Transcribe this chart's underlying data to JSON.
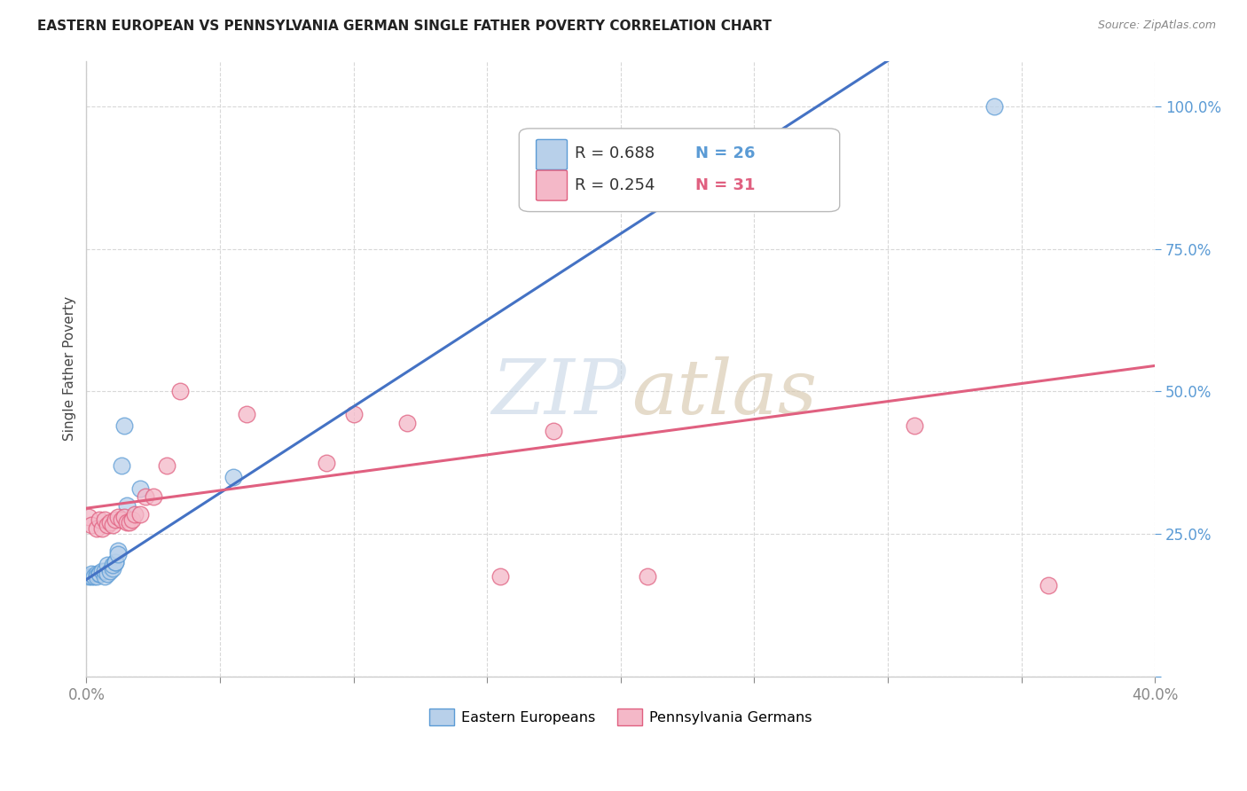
{
  "title": "EASTERN EUROPEAN VS PENNSYLVANIA GERMAN SINGLE FATHER POVERTY CORRELATION CHART",
  "source": "Source: ZipAtlas.com",
  "ylabel": "Single Father Poverty",
  "legend_blue": {
    "R": "0.688",
    "N": "26",
    "label": "Eastern Europeans"
  },
  "legend_pink": {
    "R": "0.254",
    "N": "31",
    "label": "Pennsylvania Germans"
  },
  "blue_color": "#b8d0ea",
  "blue_edge_color": "#5b9bd5",
  "blue_line_color": "#4472c4",
  "pink_color": "#f4b8c8",
  "pink_edge_color": "#e06080",
  "pink_line_color": "#e06080",
  "blue_scatter_x": [
    0.001,
    0.002,
    0.002,
    0.003,
    0.004,
    0.004,
    0.005,
    0.005,
    0.006,
    0.007,
    0.007,
    0.008,
    0.008,
    0.009,
    0.01,
    0.01,
    0.011,
    0.011,
    0.012,
    0.012,
    0.013,
    0.014,
    0.015,
    0.02,
    0.055,
    0.34
  ],
  "blue_scatter_y": [
    0.175,
    0.175,
    0.18,
    0.175,
    0.18,
    0.175,
    0.18,
    0.18,
    0.185,
    0.175,
    0.185,
    0.18,
    0.195,
    0.185,
    0.19,
    0.195,
    0.2,
    0.2,
    0.22,
    0.215,
    0.37,
    0.44,
    0.3,
    0.33,
    0.35,
    1.0
  ],
  "pink_scatter_x": [
    0.001,
    0.002,
    0.004,
    0.005,
    0.006,
    0.007,
    0.008,
    0.009,
    0.01,
    0.011,
    0.012,
    0.013,
    0.014,
    0.015,
    0.016,
    0.017,
    0.018,
    0.02,
    0.022,
    0.025,
    0.03,
    0.035,
    0.06,
    0.09,
    0.1,
    0.12,
    0.155,
    0.175,
    0.21,
    0.31,
    0.36
  ],
  "pink_scatter_y": [
    0.28,
    0.265,
    0.26,
    0.275,
    0.26,
    0.275,
    0.265,
    0.27,
    0.265,
    0.275,
    0.28,
    0.275,
    0.28,
    0.27,
    0.27,
    0.275,
    0.285,
    0.285,
    0.315,
    0.315,
    0.37,
    0.5,
    0.46,
    0.375,
    0.46,
    0.445,
    0.175,
    0.43,
    0.175,
    0.44,
    0.16
  ],
  "blue_line_x": [
    0.0,
    0.3
  ],
  "blue_line_y": [
    0.17,
    1.08
  ],
  "pink_line_x": [
    0.0,
    0.4
  ],
  "pink_line_y": [
    0.295,
    0.545
  ],
  "xlim": [
    0.0,
    0.4
  ],
  "ylim": [
    0.0,
    1.08
  ],
  "ytick_vals": [
    0.0,
    0.25,
    0.5,
    0.75,
    1.0
  ],
  "ytick_labels": [
    "",
    "25.0%",
    "50.0%",
    "75.0%",
    "100.0%"
  ],
  "xtick_vals": [
    0.0,
    0.05,
    0.1,
    0.15,
    0.2,
    0.25,
    0.3,
    0.35,
    0.4
  ],
  "xtick_labels": [
    "0.0%",
    "",
    "",
    "",
    "",
    "",
    "",
    "",
    "40.0%"
  ]
}
